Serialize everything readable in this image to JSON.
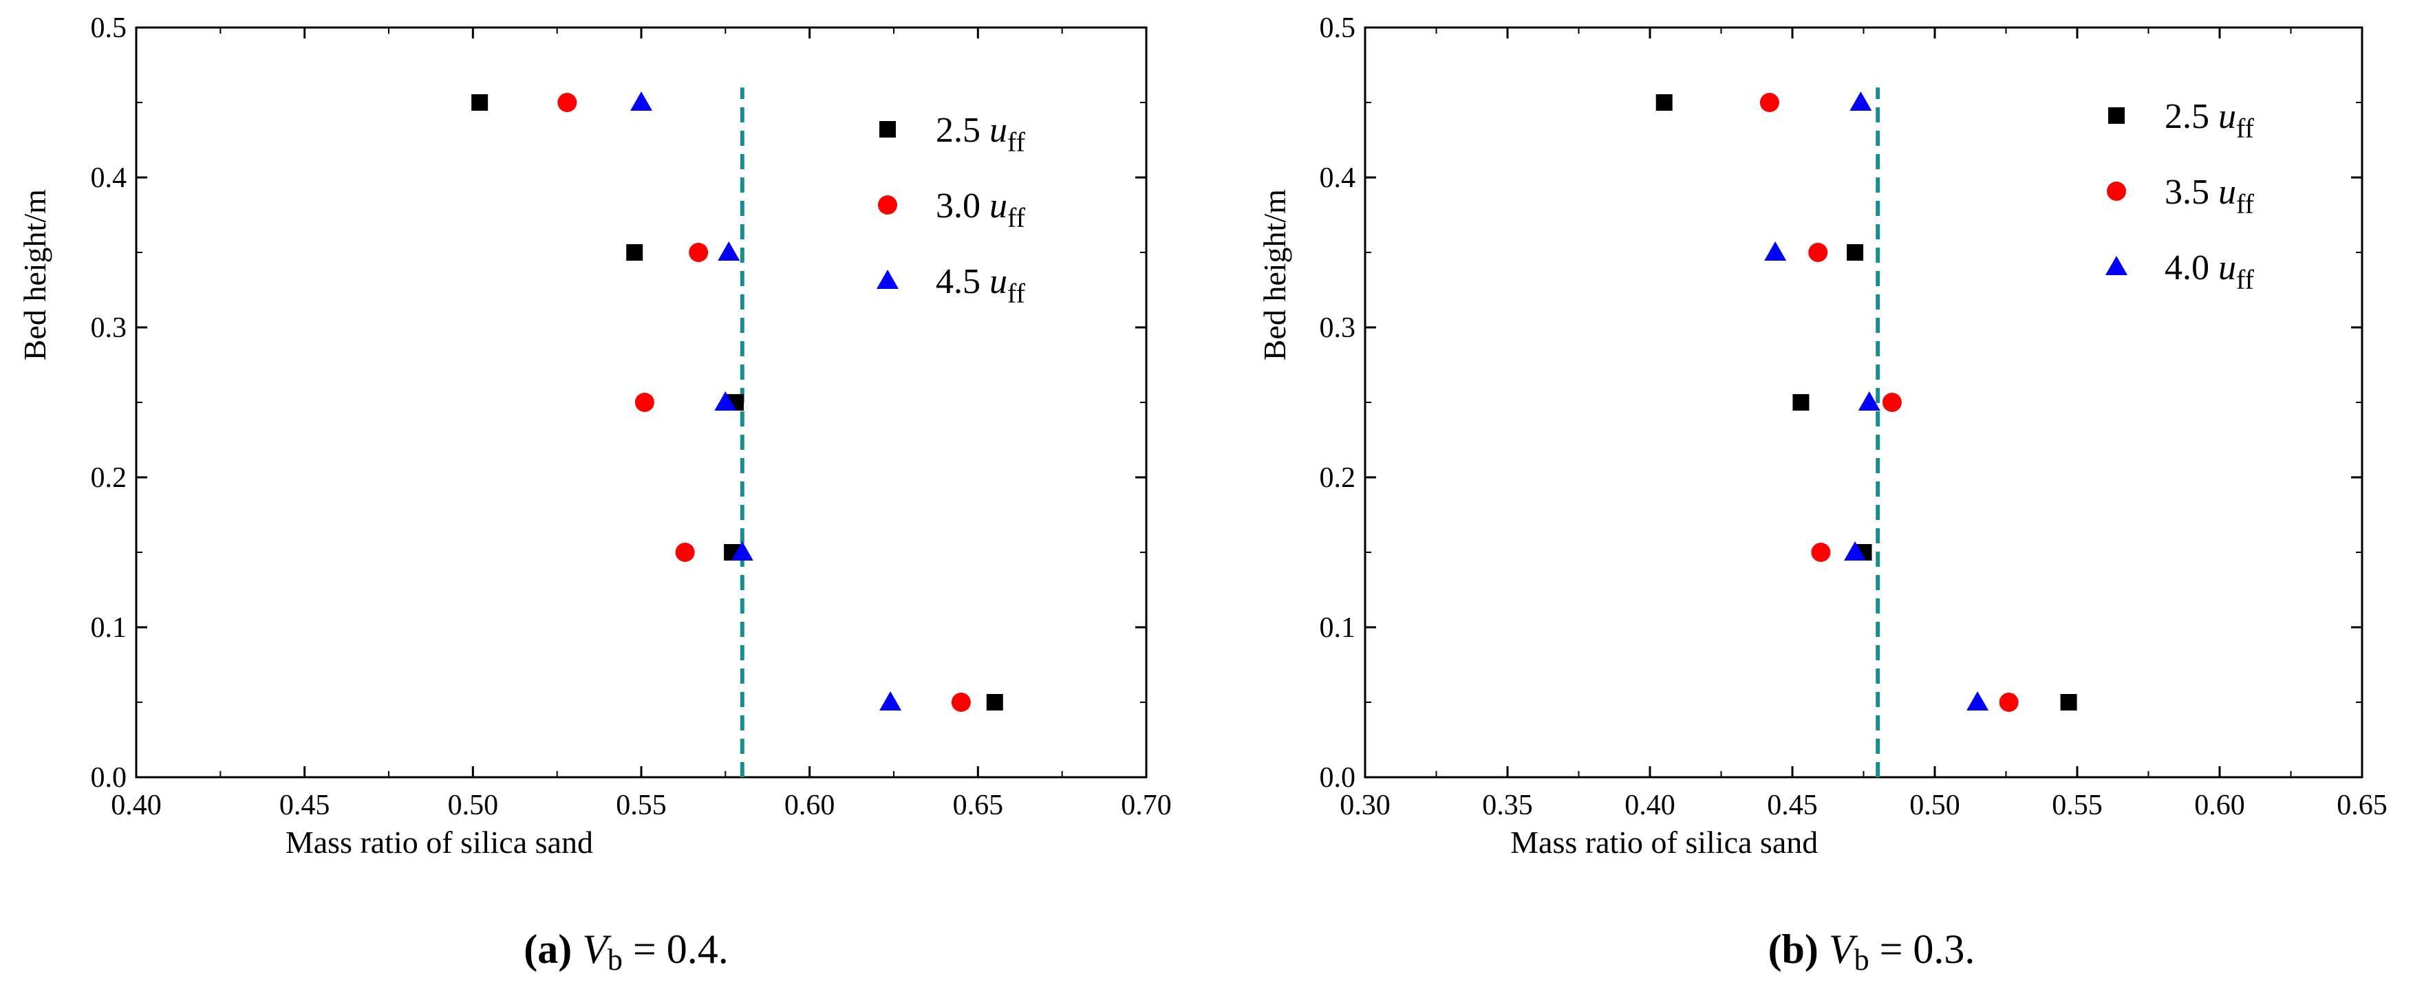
{
  "chart_data": [
    {
      "type": "scatter",
      "panel": "a",
      "caption": {
        "label": "(a)",
        "var": "V",
        "sub": "b",
        "rest": " = 0.4."
      },
      "xlabel": "Mass ratio of silica sand",
      "ylabel": "Bed height/m",
      "xlim": [
        0.4,
        0.7
      ],
      "ylim": [
        0.0,
        0.5
      ],
      "xticks": [
        "0.40",
        "0.45",
        "0.50",
        "0.55",
        "0.60",
        "0.65",
        "0.70"
      ],
      "yticks": [
        "0.0",
        "0.1",
        "0.2",
        "0.3",
        "0.4",
        "0.5"
      ],
      "reference_line_x": 0.58,
      "reference_line_y_range": [
        0.0,
        0.46
      ],
      "legend_position": "top-right",
      "series": [
        {
          "name": "2.5",
          "unit": "u",
          "unit_sub": "ff",
          "marker": "square",
          "color": "#000000",
          "points": [
            [
              0.502,
              0.45
            ],
            [
              0.548,
              0.35
            ],
            [
              0.578,
              0.25
            ],
            [
              0.577,
              0.15
            ],
            [
              0.655,
              0.05
            ]
          ]
        },
        {
          "name": "3.0",
          "unit": "u",
          "unit_sub": "ff",
          "marker": "circle",
          "color": "#ff0000",
          "points": [
            [
              0.528,
              0.45
            ],
            [
              0.567,
              0.35
            ],
            [
              0.551,
              0.25
            ],
            [
              0.563,
              0.15
            ],
            [
              0.645,
              0.05
            ]
          ]
        },
        {
          "name": "4.5",
          "unit": "u",
          "unit_sub": "ff",
          "marker": "triangle",
          "color": "#0000ff",
          "points": [
            [
              0.55,
              0.45
            ],
            [
              0.576,
              0.35
            ],
            [
              0.575,
              0.25
            ],
            [
              0.58,
              0.15
            ],
            [
              0.624,
              0.05
            ]
          ]
        }
      ]
    },
    {
      "type": "scatter",
      "panel": "b",
      "caption": {
        "label": "(b)",
        "var": "V",
        "sub": "b",
        "rest": " = 0.3."
      },
      "xlabel": "Mass ratio of silica sand",
      "ylabel": "Bed height/m",
      "xlim": [
        0.3,
        0.65
      ],
      "ylim": [
        0.0,
        0.5
      ],
      "xticks": [
        "0.30",
        "0.35",
        "0.40",
        "0.45",
        "0.50",
        "0.55",
        "0.60",
        "0.65"
      ],
      "yticks": [
        "0.0",
        "0.1",
        "0.2",
        "0.3",
        "0.4",
        "0.5"
      ],
      "reference_line_x": 0.48,
      "reference_line_y_range": [
        0.0,
        0.46
      ],
      "legend_position": "top-right",
      "series": [
        {
          "name": "2.5",
          "unit": "u",
          "unit_sub": "ff",
          "marker": "square",
          "color": "#000000",
          "points": [
            [
              0.405,
              0.45
            ],
            [
              0.472,
              0.35
            ],
            [
              0.453,
              0.25
            ],
            [
              0.475,
              0.15
            ],
            [
              0.547,
              0.05
            ]
          ]
        },
        {
          "name": "3.5",
          "unit": "u",
          "unit_sub": "ff",
          "marker": "circle",
          "color": "#ff0000",
          "points": [
            [
              0.442,
              0.45
            ],
            [
              0.459,
              0.35
            ],
            [
              0.485,
              0.25
            ],
            [
              0.46,
              0.15
            ],
            [
              0.526,
              0.05
            ]
          ]
        },
        {
          "name": "4.0",
          "unit": "u",
          "unit_sub": "ff",
          "marker": "triangle",
          "color": "#0000ff",
          "points": [
            [
              0.474,
              0.45
            ],
            [
              0.444,
              0.35
            ],
            [
              0.477,
              0.25
            ],
            [
              0.472,
              0.15
            ],
            [
              0.515,
              0.05
            ]
          ]
        }
      ]
    }
  ],
  "colors": {
    "reference_line": "#1a8c8c",
    "axis": "#000000"
  }
}
